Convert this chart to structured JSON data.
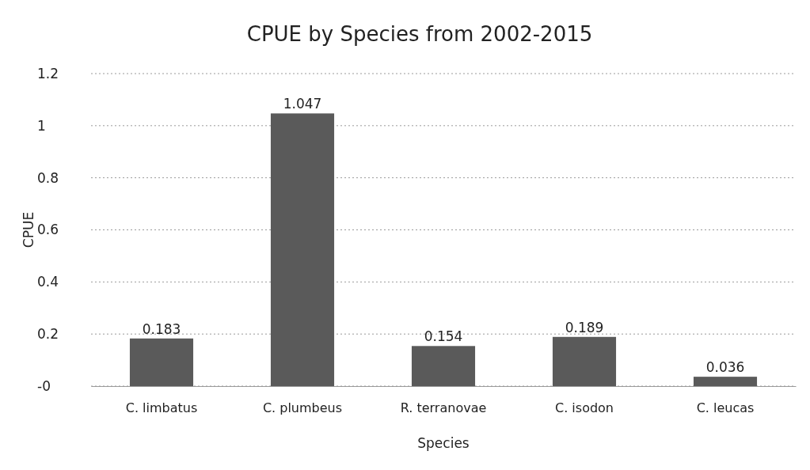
{
  "chart_data": {
    "type": "bar",
    "title": "CPUE by Species from 2002-2015",
    "xlabel": "Species",
    "ylabel": "CPUE",
    "categories": [
      "C. limbatus",
      "C. plumbeus",
      "R. terranovae",
      "C. isodon",
      "C. leucas"
    ],
    "values": [
      0.183,
      1.047,
      0.154,
      0.189,
      0.036
    ],
    "color": "#5a5a5a",
    "ylim": [
      0,
      1.2
    ],
    "yticks": [
      {
        "value": 0,
        "label": "-0"
      },
      0.2,
      0.4,
      0.6,
      0.8,
      1,
      1.2
    ],
    "grid": "y",
    "data_labels": true
  }
}
